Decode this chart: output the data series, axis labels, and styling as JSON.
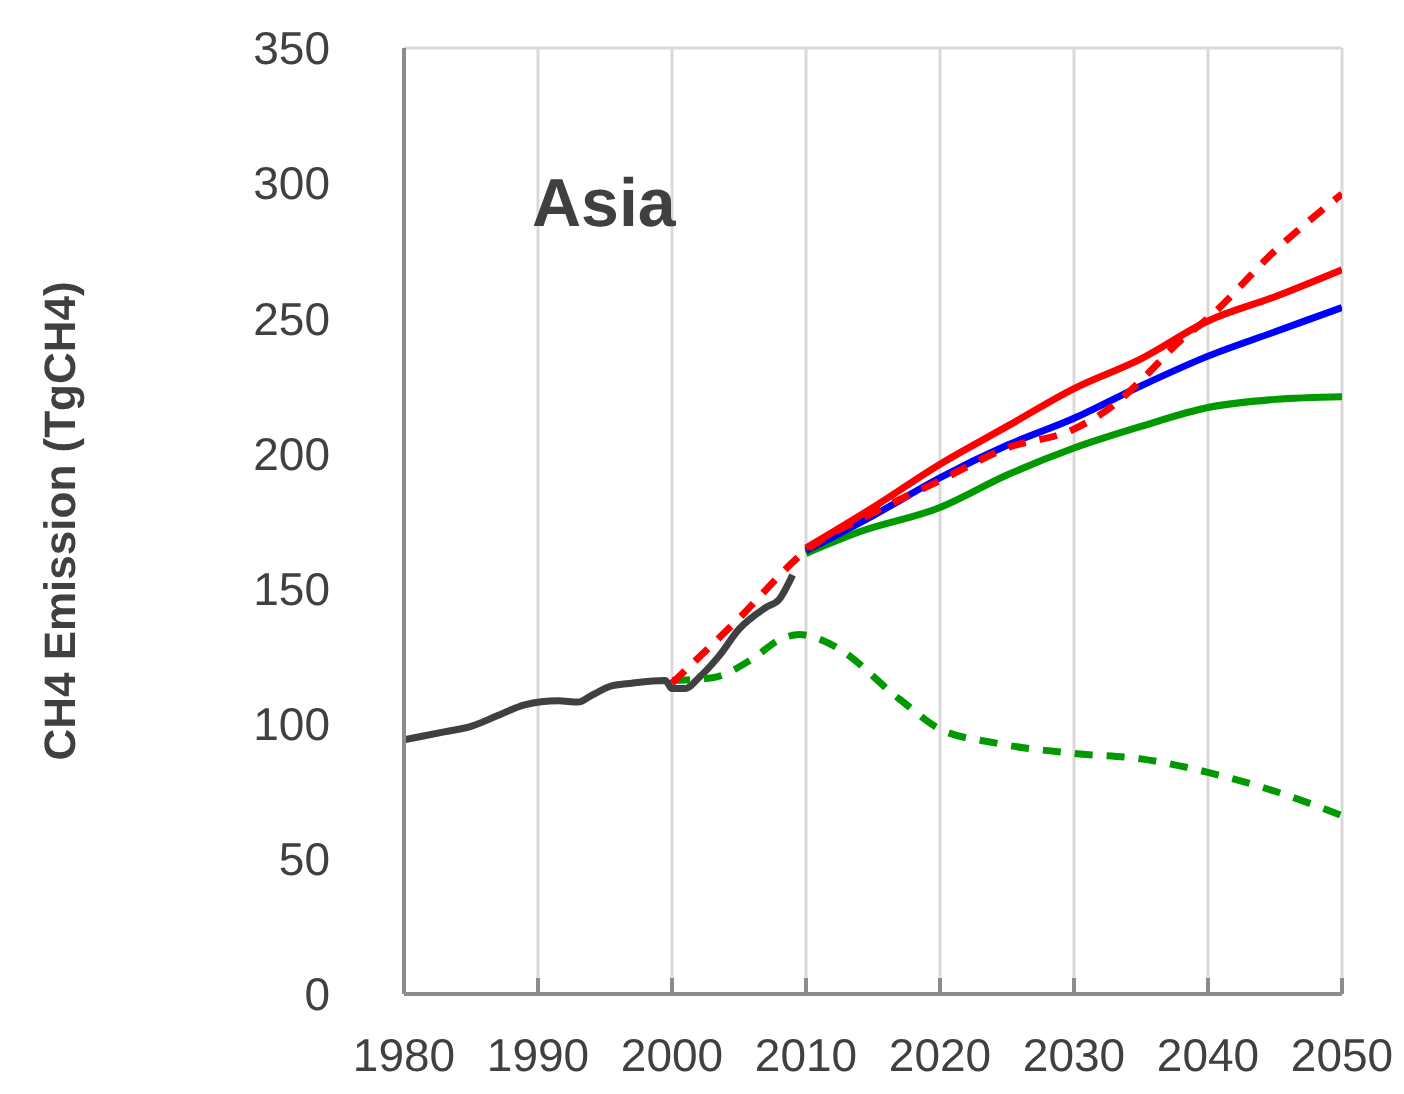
{
  "chart_data": {
    "type": "line",
    "title": "Asia",
    "ylabel": "CH4 Emission (TgCH4)",
    "xlim": [
      1980,
      2050
    ],
    "xticks": [
      1980,
      1990,
      2000,
      2010,
      2020,
      2030,
      2040,
      2050
    ],
    "ylim": [
      0,
      350
    ],
    "yticks": [
      0,
      50,
      100,
      150,
      200,
      250,
      300,
      350
    ],
    "grid": true,
    "series": [
      {
        "color": "#404040",
        "x": [
          1980,
          1983,
          1985,
          1987,
          1989,
          1991.5,
          1993,
          1994,
          1995.5,
          1997,
          1999.5,
          2000,
          2001,
          2002,
          2003.5,
          2005,
          2007,
          2008,
          2009
        ],
        "values": [
          94,
          97,
          99,
          103,
          107,
          108.5,
          108,
          110.5,
          114,
          115,
          116,
          113,
          113,
          117,
          125,
          135,
          143,
          146,
          155
        ]
      },
      {
        "color": "#009900",
        "line_style": "dashed",
        "x": [
          2000,
          2003,
          2006,
          2008,
          2009.5,
          2012,
          2017,
          2020,
          2024,
          2030,
          2035,
          2040,
          2045,
          2050
        ],
        "values": [
          116,
          117,
          124,
          131,
          133,
          129,
          109,
          98,
          93,
          89,
          87,
          82,
          75,
          66
        ]
      },
      {
        "color": "#009900",
        "x": [
          2010,
          2014,
          2020,
          2025,
          2030,
          2035,
          2040,
          2045,
          2050
        ],
        "values": [
          163,
          171,
          180,
          192,
          202,
          210,
          217,
          220,
          221
        ]
      },
      {
        "color": "#0000ff",
        "x": [
          2010,
          2015,
          2020,
          2025,
          2030,
          2035,
          2040,
          2045,
          2050
        ],
        "values": [
          164,
          177,
          191,
          203,
          213,
          225,
          236,
          245,
          254
        ]
      },
      {
        "color": "#ff0000",
        "x": [
          2010,
          2015,
          2020,
          2025,
          2030,
          2035,
          2040,
          2045,
          2050
        ],
        "values": [
          165,
          180,
          196,
          210,
          224,
          235,
          249,
          258,
          268
        ]
      },
      {
        "color": "#ff0000",
        "line_style": "dashed",
        "x": [
          2000,
          2005,
          2010,
          2015,
          2020,
          2025,
          2030,
          2033,
          2035,
          2038,
          2040,
          2045,
          2050
        ],
        "values": [
          115,
          139,
          164,
          178,
          190,
          202,
          209,
          218,
          227,
          242,
          250,
          275,
          296
        ]
      }
    ]
  }
}
